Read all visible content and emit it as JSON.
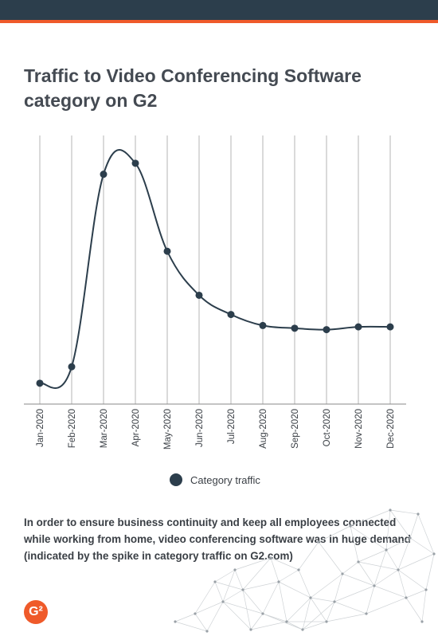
{
  "header": {
    "brand_color": "#2c3e4c",
    "accent_color": "#ef5a2a"
  },
  "chart_data": {
    "type": "line",
    "title": "Traffic to Video Conferencing Software\ncategory on G2",
    "categories": [
      "Jan-2020",
      "Feb-2020",
      "Mar-2020",
      "Apr-2020",
      "May-2020",
      "Jun-2020",
      "Jul-2020",
      "Aug-2020",
      "Sep-2020",
      "Oct-2020",
      "Nov-2020",
      "Dec-2020"
    ],
    "series": [
      {
        "name": "Category traffic",
        "color": "#2c3e4c",
        "values": [
          7,
          13,
          83,
          87,
          55,
          39,
          32,
          28,
          27,
          26.5,
          27.5,
          27.5
        ]
      }
    ],
    "ylim": [
      0,
      100
    ],
    "grid": "vertical",
    "legend": "bottom-center"
  },
  "legend": {
    "label": "Category traffic",
    "color": "#2c3e4c"
  },
  "footnote": "In order to ensure business continuity and keep all employees connected while working from home, video conferencing software was in huge demand (indicated by the spike in category traffic on G2.com)",
  "logo": {
    "icon": "g2-logo",
    "text": "G²"
  }
}
